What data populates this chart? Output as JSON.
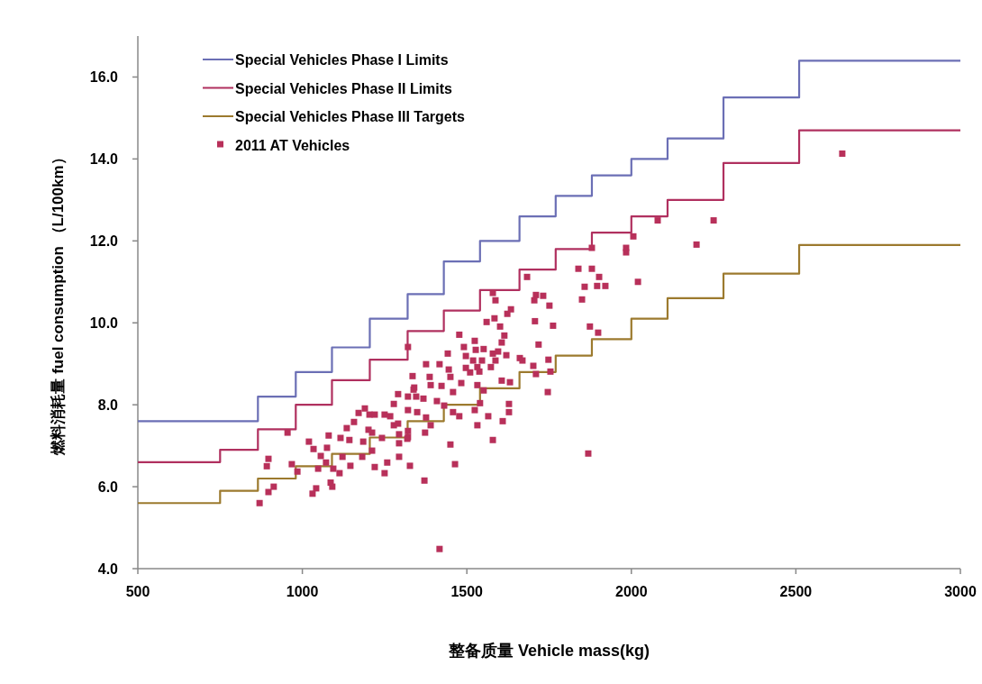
{
  "chart_data": {
    "type": "scatter",
    "xlabel": "整备质量 Vehicle mass(kg)",
    "ylabel": "燃料消耗量 fuel consumption （L/100km）",
    "xlim": [
      500,
      3000
    ],
    "ylim": [
      4,
      17
    ],
    "xticks": [
      500,
      1000,
      1500,
      2000,
      2500,
      3000
    ],
    "yticks": [
      {
        "value": 4,
        "label": "4.0"
      },
      {
        "value": 6,
        "label": "6.0"
      },
      {
        "value": 8,
        "label": "8.0"
      },
      {
        "value": 10,
        "label": "10.0"
      },
      {
        "value": 12,
        "label": "12.0"
      },
      {
        "value": 14,
        "label": "14.0"
      },
      {
        "value": 16,
        "label": "16.0"
      }
    ],
    "grid": false,
    "legend": "top left",
    "series": [
      {
        "name": "Special Vehicles Phase I Limits",
        "type": "step",
        "color": "#6b6fb5",
        "x": [
          500,
          865,
          980,
          1090,
          1205,
          1320,
          1430,
          1540,
          1660,
          1770,
          1880,
          2000,
          2110,
          2280,
          2510,
          3000
        ],
        "values": [
          7.6,
          8.2,
          8.8,
          9.4,
          10.1,
          10.7,
          11.5,
          12.0,
          12.6,
          13.1,
          13.6,
          14.0,
          14.5,
          15.5,
          16.4,
          16.4
        ]
      },
      {
        "name": "Special Vehicles Phase II Limits",
        "type": "step",
        "color": "#b0305f",
        "x": [
          500,
          750,
          865,
          980,
          1090,
          1205,
          1320,
          1430,
          1540,
          1660,
          1770,
          1880,
          2000,
          2110,
          2280,
          2510,
          3000
        ],
        "values": [
          6.6,
          6.9,
          7.4,
          8.0,
          8.6,
          9.1,
          9.8,
          10.3,
          10.8,
          11.3,
          11.8,
          12.2,
          12.6,
          13.0,
          13.9,
          14.7,
          14.7
        ]
      },
      {
        "name": "Special Vehicles Phase III Targets",
        "type": "step",
        "color": "#9c7a2e",
        "x": [
          500,
          750,
          865,
          980,
          1090,
          1205,
          1320,
          1430,
          1540,
          1660,
          1770,
          1880,
          2000,
          2110,
          2280,
          2510,
          3000
        ],
        "values": [
          5.6,
          5.9,
          6.2,
          6.5,
          6.8,
          7.2,
          7.6,
          8.0,
          8.4,
          8.8,
          9.2,
          9.6,
          10.1,
          10.6,
          11.2,
          11.9,
          11.9
        ]
      },
      {
        "name": "2011 AT Vehicles",
        "marker": "square",
        "color": "#b8305a",
        "x": [
          870,
          897,
          913,
          897,
          892,
          955,
          968,
          985,
          1020,
          1034,
          1031,
          1042,
          1056,
          1048,
          1075,
          1080,
          1086,
          1091,
          1072,
          1094,
          1113,
          1116,
          1143,
          1122,
          1146,
          1135,
          1157,
          1171,
          1190,
          1204,
          1220,
          1185,
          1182,
          1201,
          1212,
          1212,
          1220,
          1242,
          1250,
          1267,
          1278,
          1294,
          1258,
          1250,
          1278,
          1291,
          1321,
          1335,
          1340,
          1327,
          1321,
          1319,
          1294,
          1683,
          1579,
          1587,
          1710,
          1732,
          1705,
          1751,
          1634,
          1623,
          1560,
          1584,
          1601,
          1707,
          1762,
          1477,
          1524,
          1614,
          1606,
          1442,
          1491,
          1527,
          1551,
          1579,
          1595,
          1718,
          1497,
          1519,
          1546,
          1661,
          1669,
          1587,
          1620,
          1376,
          1417,
          1445,
          1497,
          1532,
          1573,
          1702,
          1748,
          1387,
          1450,
          1510,
          1538,
          1606,
          1631,
          1710,
          1754,
          1746,
          1338,
          1423,
          1390,
          1458,
          1483,
          1532,
          1551,
          1346,
          1368,
          1409,
          1431,
          1458,
          1477,
          1524,
          1540,
          1628,
          1628,
          1565,
          1609,
          1532,
          1321,
          1349,
          1376,
          1390,
          1373,
          1294,
          1321,
          1450,
          1579,
          1464,
          1371,
          2080,
          2250,
          2198,
          2006,
          1984,
          1984,
          1880,
          1839,
          1880,
          1902,
          1858,
          1896,
          1921,
          2020,
          1850,
          1874,
          1899,
          1869,
          1417,
          2641,
          1321,
          1291
        ],
        "values": [
          5.6,
          5.87,
          6.0,
          6.68,
          6.5,
          7.32,
          6.55,
          6.37,
          7.1,
          6.92,
          5.83,
          5.96,
          6.75,
          6.44,
          6.95,
          7.25,
          6.1,
          6.0,
          6.59,
          6.44,
          6.33,
          7.19,
          7.14,
          6.73,
          6.51,
          7.43,
          7.58,
          7.8,
          7.91,
          7.76,
          7.76,
          7.1,
          6.73,
          7.39,
          7.32,
          6.88,
          6.48,
          7.19,
          7.76,
          7.72,
          7.5,
          6.73,
          6.59,
          6.33,
          8.02,
          8.26,
          8.2,
          8.7,
          8.42,
          6.51,
          7.36,
          7.17,
          7.28,
          11.12,
          10.73,
          10.55,
          10.68,
          10.66,
          10.55,
          10.42,
          10.33,
          10.22,
          10.02,
          10.11,
          9.91,
          10.04,
          9.93,
          9.71,
          9.56,
          9.69,
          9.52,
          9.25,
          9.41,
          9.34,
          9.36,
          9.25,
          9.3,
          9.47,
          9.19,
          9.08,
          9.08,
          9.14,
          9.08,
          9.08,
          9.21,
          8.99,
          8.99,
          8.86,
          8.9,
          8.92,
          8.92,
          8.95,
          9.1,
          8.68,
          8.68,
          8.79,
          8.81,
          8.59,
          8.55,
          8.75,
          8.81,
          8.31,
          8.37,
          8.46,
          8.48,
          8.31,
          8.53,
          8.48,
          8.35,
          8.2,
          8.15,
          8.09,
          7.98,
          7.82,
          7.72,
          7.87,
          8.04,
          8.02,
          7.82,
          7.72,
          7.6,
          7.5,
          7.87,
          7.82,
          7.69,
          7.5,
          7.32,
          7.06,
          7.21,
          7.03,
          7.14,
          6.55,
          6.15,
          12.5,
          12.5,
          11.91,
          12.11,
          11.83,
          11.72,
          11.83,
          11.32,
          11.32,
          11.12,
          10.88,
          10.9,
          10.9,
          11.0,
          10.57,
          9.91,
          9.76,
          6.81,
          4.48,
          14.13,
          9.41,
          7.54
        ]
      }
    ]
  }
}
